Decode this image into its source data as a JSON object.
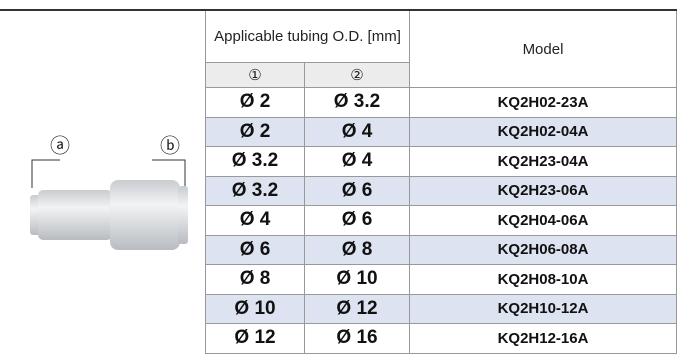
{
  "figure": {
    "labels": [
      "ⓐ",
      "ⓑ"
    ]
  },
  "table": {
    "header": {
      "tubing": "Applicable tubing O.D. [mm]",
      "col1": "①",
      "col2": "②",
      "model": "Model"
    },
    "rows": [
      [
        "Ø 2",
        "Ø 3.2",
        "KQ2H02-23A"
      ],
      [
        "Ø 2",
        "Ø 4",
        "KQ2H02-04A"
      ],
      [
        "Ø 3.2",
        "Ø 4",
        "KQ2H23-04A"
      ],
      [
        "Ø 3.2",
        "Ø 6",
        "KQ2H23-06A"
      ],
      [
        "Ø 4",
        "Ø 6",
        "KQ2H04-06A"
      ],
      [
        "Ø 6",
        "Ø 8",
        "KQ2H06-08A"
      ],
      [
        "Ø 8",
        "Ø 10",
        "KQ2H08-10A"
      ],
      [
        "Ø 10",
        "Ø 12",
        "KQ2H10-12A"
      ],
      [
        "Ø 12",
        "Ø 16",
        "KQ2H12-16A"
      ]
    ]
  }
}
